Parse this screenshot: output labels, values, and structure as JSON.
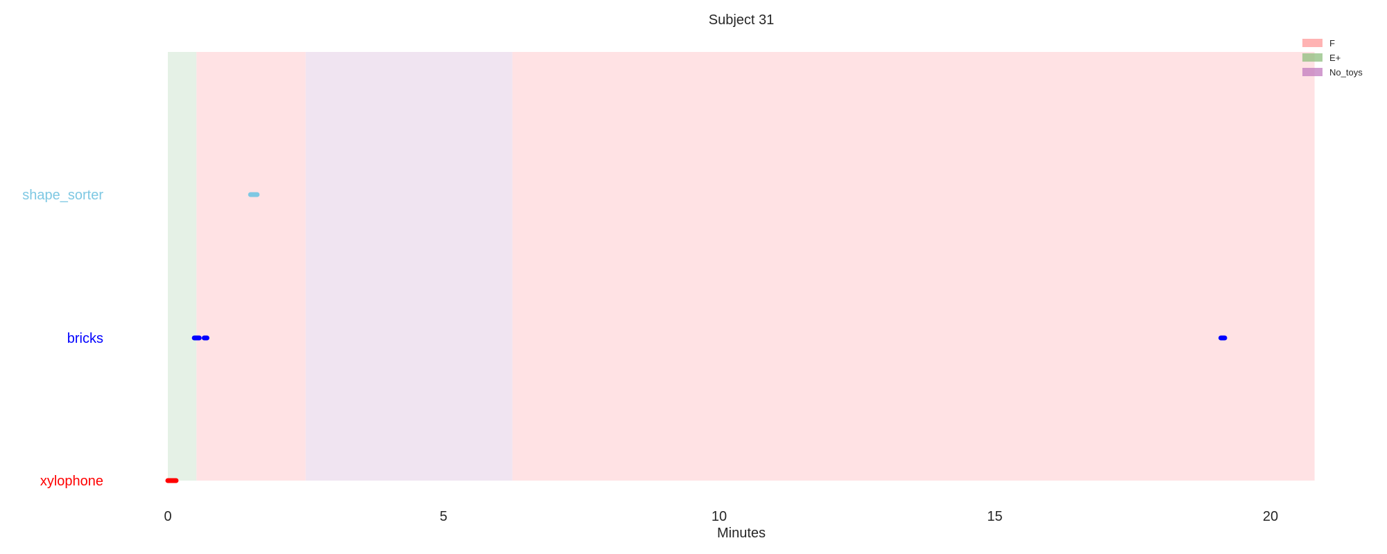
{
  "chart_data": {
    "type": "timeline",
    "title": "Subject 31",
    "xlabel": "Minutes",
    "xlim": [
      0,
      20.8
    ],
    "xticks": [
      0,
      5,
      10,
      15,
      20
    ],
    "grid": false,
    "legend_position": "top-right",
    "legend": [
      {
        "name": "F",
        "color": "#ff9999"
      },
      {
        "name": "E+",
        "color": "#8fbf7f"
      },
      {
        "name": "No_toys",
        "color": "#c27bbf"
      }
    ],
    "phases": [
      {
        "label": "E+",
        "start": 0.0,
        "end": 0.52,
        "color": "#e5f1e6"
      },
      {
        "label": "F",
        "start": 0.52,
        "end": 2.5,
        "color": "#ffe2e4"
      },
      {
        "label": "No_toys",
        "start": 2.5,
        "end": 6.25,
        "color": "#f0e4f1"
      },
      {
        "label": "F",
        "start": 6.25,
        "end": 20.8,
        "color": "#ffe2e4"
      }
    ],
    "categories": [
      "xylophone",
      "bricks",
      "shape_sorter"
    ],
    "series": [
      {
        "name": "xylophone",
        "color": "#ff0000",
        "events": [
          [
            0.0,
            0.15
          ]
        ]
      },
      {
        "name": "bricks",
        "color": "#0000ff",
        "events": [
          [
            0.48,
            0.57
          ],
          [
            0.66,
            0.71
          ],
          [
            19.1,
            19.17
          ]
        ]
      },
      {
        "name": "shape_sorter",
        "color": "#7ec8e3",
        "events": [
          [
            1.5,
            1.62
          ]
        ]
      }
    ]
  }
}
